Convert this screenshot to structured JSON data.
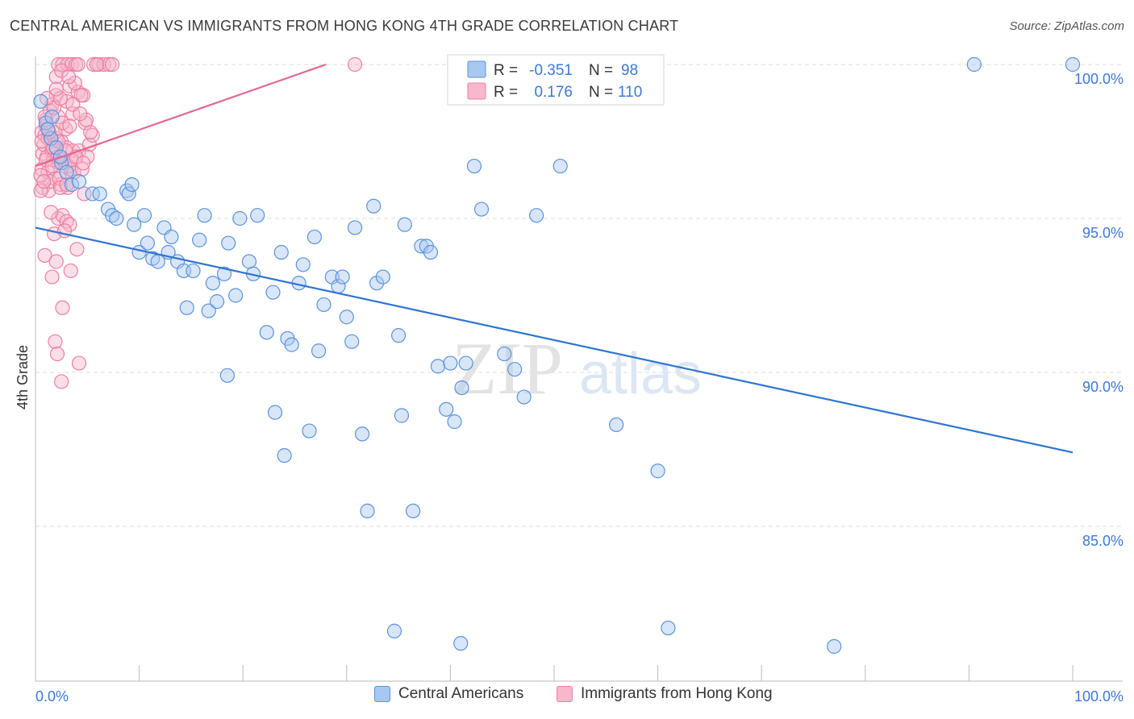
{
  "header": {
    "title": "CENTRAL AMERICAN VS IMMIGRANTS FROM HONG KONG 4TH GRADE CORRELATION CHART",
    "source": "Source: ZipAtlas.com"
  },
  "watermark": {
    "zip": "ZIP",
    "atlas": "atlas"
  },
  "colors": {
    "blue_fill": "#a9c8f0",
    "blue_stroke": "#5b93dc",
    "blue_line": "#2f74d0",
    "pink_fill": "#f7b8cc",
    "pink_stroke": "#ec7fa2",
    "pink_line": "#e4678f",
    "value_text": "#3d78d8",
    "grid": "#dddddd"
  },
  "legend": {
    "rows": [
      {
        "r_label": "R =",
        "r_value": "-0.351",
        "n_label": "N =",
        "n_value": "98",
        "series": "blue"
      },
      {
        "r_label": "R =",
        "r_value": "0.176",
        "n_label": "N =",
        "n_value": "110",
        "series": "pink"
      }
    ],
    "bottom": [
      "Central Americans",
      "Immigrants from Hong Kong"
    ]
  },
  "chart_data": {
    "type": "scatter",
    "title": "CENTRAL AMERICAN VS IMMIGRANTS FROM HONG KONG 4TH GRADE CORRELATION CHART",
    "xlabel": "",
    "ylabel": "4th Grade",
    "xlim": [
      0,
      100
    ],
    "ylim": [
      80.5,
      100.6
    ],
    "x_tick_labels": [
      "0.0%",
      "100.0%"
    ],
    "y_ticks": [
      85,
      90,
      95,
      100
    ],
    "y_tick_labels": [
      "85.0%",
      "90.0%",
      "95.0%",
      "100.0%"
    ],
    "grid": true,
    "legend_position": "top-center",
    "series": [
      {
        "name": "Central Americans",
        "color": "blue",
        "r": -0.351,
        "n": 98,
        "trend": {
          "x": [
            0,
            100
          ],
          "y": [
            94.7,
            87.4
          ]
        },
        "points": [
          [
            0.5,
            98.8
          ],
          [
            1.0,
            98.1
          ],
          [
            1.5,
            97.6
          ],
          [
            2.0,
            97.3
          ],
          [
            2.5,
            96.8
          ],
          [
            3.0,
            96.5
          ],
          [
            1.2,
            97.9
          ],
          [
            2.4,
            97.0
          ],
          [
            3.5,
            96.1
          ],
          [
            4.2,
            96.2
          ],
          [
            5.5,
            95.8
          ],
          [
            6.2,
            95.8
          ],
          [
            7.0,
            95.3
          ],
          [
            7.4,
            95.1
          ],
          [
            7.8,
            95.0
          ],
          [
            8.8,
            95.9
          ],
          [
            9.0,
            95.8
          ],
          [
            9.3,
            96.1
          ],
          [
            9.5,
            94.8
          ],
          [
            10.0,
            93.9
          ],
          [
            10.5,
            95.1
          ],
          [
            10.8,
            94.2
          ],
          [
            11.3,
            93.7
          ],
          [
            11.8,
            93.6
          ],
          [
            12.4,
            94.7
          ],
          [
            12.8,
            93.9
          ],
          [
            13.1,
            94.4
          ],
          [
            13.7,
            93.6
          ],
          [
            14.3,
            93.3
          ],
          [
            14.6,
            92.1
          ],
          [
            15.2,
            93.3
          ],
          [
            15.8,
            94.3
          ],
          [
            16.3,
            95.1
          ],
          [
            16.7,
            92.0
          ],
          [
            17.1,
            92.9
          ],
          [
            17.5,
            92.3
          ],
          [
            18.2,
            93.2
          ],
          [
            18.6,
            94.2
          ],
          [
            19.3,
            92.5
          ],
          [
            19.7,
            95.0
          ],
          [
            20.6,
            93.6
          ],
          [
            21.0,
            93.2
          ],
          [
            21.4,
            95.1
          ],
          [
            22.3,
            91.3
          ],
          [
            22.9,
            92.6
          ],
          [
            23.7,
            93.9
          ],
          [
            24.3,
            91.1
          ],
          [
            24.7,
            90.9
          ],
          [
            25.4,
            92.9
          ],
          [
            25.8,
            93.5
          ],
          [
            26.9,
            94.4
          ],
          [
            27.3,
            90.7
          ],
          [
            27.8,
            92.2
          ],
          [
            28.6,
            93.1
          ],
          [
            29.2,
            92.8
          ],
          [
            29.6,
            93.1
          ],
          [
            30.0,
            91.8
          ],
          [
            30.5,
            91.0
          ],
          [
            30.8,
            94.7
          ],
          [
            32.6,
            95.4
          ],
          [
            32.9,
            92.9
          ],
          [
            33.5,
            93.1
          ],
          [
            35.0,
            91.2
          ],
          [
            35.6,
            94.8
          ],
          [
            37.2,
            94.1
          ],
          [
            37.7,
            94.1
          ],
          [
            38.1,
            93.9
          ],
          [
            38.8,
            90.2
          ],
          [
            39.6,
            88.8
          ],
          [
            40.0,
            90.3
          ],
          [
            40.4,
            88.4
          ],
          [
            41.1,
            89.5
          ],
          [
            41.5,
            90.3
          ],
          [
            42.3,
            96.7
          ],
          [
            43.0,
            95.3
          ],
          [
            45.2,
            90.6
          ],
          [
            46.2,
            90.1
          ],
          [
            47.1,
            89.2
          ],
          [
            48.3,
            95.1
          ],
          [
            50.6,
            96.7
          ],
          [
            56.0,
            88.3
          ],
          [
            60.0,
            86.8
          ],
          [
            18.5,
            89.9
          ],
          [
            23.1,
            88.7
          ],
          [
            24.0,
            87.3
          ],
          [
            26.4,
            88.1
          ],
          [
            31.5,
            88.0
          ],
          [
            35.3,
            88.6
          ],
          [
            32.0,
            85.5
          ],
          [
            36.4,
            85.5
          ],
          [
            34.6,
            81.6
          ],
          [
            41.0,
            81.2
          ],
          [
            61.0,
            81.7
          ],
          [
            77.0,
            81.1
          ],
          [
            90.5,
            100.0
          ],
          [
            100.0,
            100.0
          ],
          [
            49.5,
            100.0
          ],
          [
            1.6,
            98.3
          ]
        ]
      },
      {
        "name": "Immigrants from Hong Kong",
        "color": "pink",
        "r": 0.176,
        "n": 110,
        "trend": {
          "x": [
            0,
            28
          ],
          "y": [
            96.7,
            100.0
          ]
        },
        "points": [
          [
            2.2,
            100.0
          ],
          [
            2.6,
            100.0
          ],
          [
            3.1,
            100.0
          ],
          [
            3.5,
            100.0
          ],
          [
            3.9,
            100.0
          ],
          [
            5.6,
            100.0
          ],
          [
            6.1,
            100.0
          ],
          [
            6.6,
            100.0
          ],
          [
            7.1,
            100.0
          ],
          [
            2.0,
            99.6
          ],
          [
            2.5,
            99.8
          ],
          [
            3.3,
            99.3
          ],
          [
            4.1,
            99.1
          ],
          [
            4.6,
            99.0
          ],
          [
            2.0,
            99.0
          ],
          [
            3.0,
            98.8
          ],
          [
            1.6,
            98.7
          ],
          [
            1.4,
            98.5
          ],
          [
            2.2,
            98.3
          ],
          [
            3.6,
            98.4
          ],
          [
            4.8,
            98.1
          ],
          [
            1.0,
            98.0
          ],
          [
            0.6,
            97.8
          ],
          [
            0.9,
            97.7
          ],
          [
            1.5,
            97.5
          ],
          [
            2.0,
            97.6
          ],
          [
            2.5,
            97.5
          ],
          [
            3.0,
            97.3
          ],
          [
            3.6,
            97.2
          ],
          [
            4.2,
            97.2
          ],
          [
            5.2,
            97.4
          ],
          [
            5.5,
            97.7
          ],
          [
            0.7,
            97.1
          ],
          [
            1.1,
            97.0
          ],
          [
            1.7,
            96.9
          ],
          [
            2.3,
            96.8
          ],
          [
            2.8,
            96.8
          ],
          [
            3.4,
            96.6
          ],
          [
            0.6,
            96.6
          ],
          [
            1.2,
            96.5
          ],
          [
            1.9,
            96.3
          ],
          [
            2.4,
            96.1
          ],
          [
            3.1,
            96.0
          ],
          [
            0.7,
            96.0
          ],
          [
            1.3,
            95.9
          ],
          [
            4.7,
            95.8
          ],
          [
            2.2,
            95.0
          ],
          [
            2.6,
            95.1
          ],
          [
            3.0,
            94.9
          ],
          [
            3.3,
            94.8
          ],
          [
            1.8,
            94.5
          ],
          [
            4.0,
            94.0
          ],
          [
            0.9,
            93.8
          ],
          [
            2.0,
            93.6
          ],
          [
            3.4,
            93.3
          ],
          [
            1.6,
            93.1
          ],
          [
            2.6,
            92.1
          ],
          [
            1.9,
            91.0
          ],
          [
            2.1,
            90.6
          ],
          [
            4.2,
            90.3
          ],
          [
            2.5,
            89.7
          ],
          [
            1.0,
            98.2
          ],
          [
            2.9,
            97.9
          ],
          [
            0.8,
            97.4
          ],
          [
            1.6,
            97.2
          ],
          [
            2.1,
            97.0
          ],
          [
            2.7,
            96.9
          ],
          [
            3.2,
            96.7
          ],
          [
            3.7,
            96.5
          ],
          [
            1.4,
            96.2
          ],
          [
            2.3,
            96.3
          ],
          [
            0.5,
            96.4
          ],
          [
            4.5,
            96.6
          ],
          [
            1.2,
            97.6
          ],
          [
            1.9,
            97.8
          ],
          [
            2.6,
            98.1
          ],
          [
            3.3,
            98.0
          ],
          [
            0.9,
            98.3
          ],
          [
            1.8,
            98.6
          ],
          [
            2.4,
            98.9
          ],
          [
            3.8,
            99.4
          ],
          [
            4.4,
            99.0
          ],
          [
            5.9,
            100.0
          ],
          [
            4.9,
            98.2
          ],
          [
            5.0,
            97.0
          ],
          [
            3.5,
            96.9
          ],
          [
            1.5,
            95.2
          ],
          [
            2.8,
            94.6
          ],
          [
            0.5,
            95.9
          ],
          [
            1.0,
            96.9
          ],
          [
            1.7,
            97.3
          ],
          [
            2.2,
            97.5
          ],
          [
            3.9,
            97.0
          ],
          [
            4.6,
            96.8
          ],
          [
            5.3,
            97.8
          ],
          [
            0.6,
            97.5
          ],
          [
            1.3,
            97.8
          ],
          [
            2.9,
            97.2
          ],
          [
            3.6,
            98.7
          ],
          [
            4.3,
            98.4
          ],
          [
            1.1,
            98.9
          ],
          [
            2.0,
            99.2
          ],
          [
            3.2,
            99.6
          ],
          [
            4.1,
            100.0
          ],
          [
            7.4,
            100.0
          ],
          [
            30.8,
            100.0
          ],
          [
            2.4,
            96.0
          ],
          [
            3.0,
            96.1
          ],
          [
            1.6,
            96.7
          ],
          [
            0.8,
            96.2
          ]
        ]
      }
    ]
  }
}
